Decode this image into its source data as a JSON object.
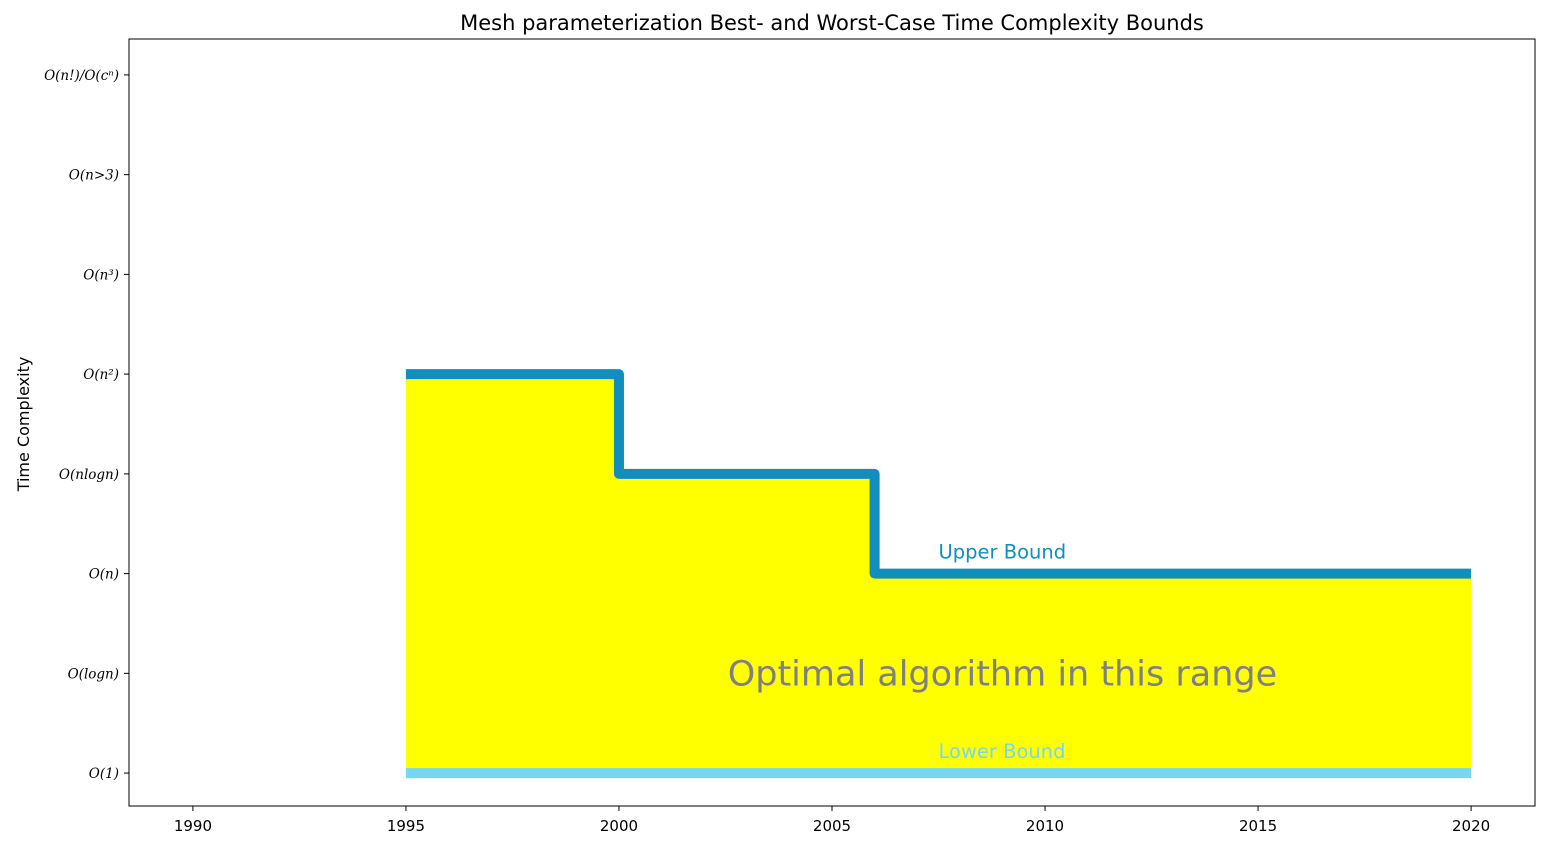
{
  "chart_data": {
    "type": "line",
    "title": "Mesh parameterization Best- and Worst-Case Time Complexity Bounds",
    "xlabel": "",
    "ylabel": "Time Complexity",
    "xlim": [
      1988.5,
      2021.5
    ],
    "ylim": [
      -0.33,
      7.36
    ],
    "xticks": [
      1990,
      1995,
      2000,
      2005,
      2010,
      2015,
      2020
    ],
    "xtick_labels": [
      "1990",
      "1995",
      "2000",
      "2005",
      "2010",
      "2015",
      "2020"
    ],
    "yticks": [
      0,
      1,
      2,
      3,
      4,
      5,
      6,
      7
    ],
    "ytick_labels": [
      "O(1)",
      "O(logn)",
      "O(n)",
      "O(nlogn)",
      "O(n²)",
      "O(n³)",
      "O(n>3)",
      "O(n!)/O(cⁿ)"
    ],
    "grid": false,
    "series": [
      {
        "name": "Upper Bound",
        "color": "#118ebd",
        "step": "post",
        "x": [
          1995,
          2000,
          2006,
          2020
        ],
        "y": [
          4,
          3,
          2,
          2
        ]
      },
      {
        "name": "Lower Bound",
        "color": "#76d7f3",
        "step": "post",
        "x": [
          1995,
          2020
        ],
        "y": [
          0,
          0
        ]
      }
    ],
    "fill_between": {
      "color": "#ffff00",
      "between": [
        "Lower Bound",
        "Upper Bound"
      ]
    },
    "annotations": [
      {
        "text": "Upper Bound",
        "x": 2007.5,
        "y": 2.15,
        "color": "#118ebd"
      },
      {
        "text": "Lower Bound",
        "x": 2007.5,
        "y": 0.15,
        "color": "#76d7f3"
      },
      {
        "text": "Optimal algorithm in this range",
        "x": 2009.0,
        "y": 1.0,
        "color": "#808080"
      }
    ]
  }
}
